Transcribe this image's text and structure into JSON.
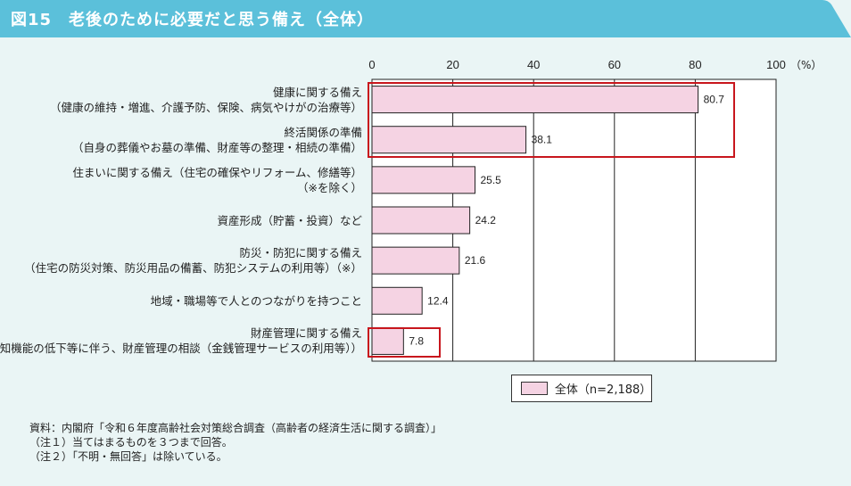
{
  "title": "図15　老後のために必要だと思う備え（全体）",
  "colors": {
    "header": "#5bc0da",
    "background": "#eaf5f5",
    "bar": "#f5d3e3",
    "highlight": "#c8161d"
  },
  "chart_data": {
    "type": "bar",
    "orientation": "horizontal",
    "categories": [
      [
        "健康に関する備え",
        "（健康の維持・増進、介護予防、保険、病気やけがの治療等）"
      ],
      [
        "終活関係の準備",
        "（自身の葬儀やお墓の準備、財産等の整理・相続の準備）"
      ],
      [
        "住まいに関する備え（住宅の確保やリフォーム、修繕等）",
        "（※を除く）"
      ],
      [
        "資産形成（貯蓄・投資）など"
      ],
      [
        "防災・防犯に関する備え",
        "（住宅の防災対策、防災用品の備蓄、防犯システムの利用等）（※）"
      ],
      [
        "地域・職場等で人とのつながりを持つこと"
      ],
      [
        "財産管理に関する備え",
        "（認知機能の低下等に伴う、財産管理の相談（金銭管理サービスの利用等））"
      ]
    ],
    "series": [
      {
        "name": "全体（n=2,188）",
        "values": [
          80.7,
          38.1,
          25.5,
          24.2,
          21.6,
          12.4,
          7.8
        ]
      }
    ],
    "data_labels": [
      "80.7",
      "38.1",
      "25.5",
      "24.2",
      "21.6",
      "12.4",
      "7.8"
    ],
    "xlim": [
      0,
      100
    ],
    "xticks": [
      "0",
      "20",
      "40",
      "60",
      "80",
      "100"
    ],
    "xunit": "（%）",
    "grid": true,
    "legend": "bottom",
    "highlighted_groups": [
      [
        0,
        1
      ],
      [
        6
      ]
    ]
  },
  "notes": [
    "資料：内閣府「令和６年度高齢社会対策総合調査（高齢者の経済生活に関する調査）」",
    "（注１）当てはまるものを３つまで回答。",
    "（注２）「不明・無回答」は除いている。"
  ]
}
